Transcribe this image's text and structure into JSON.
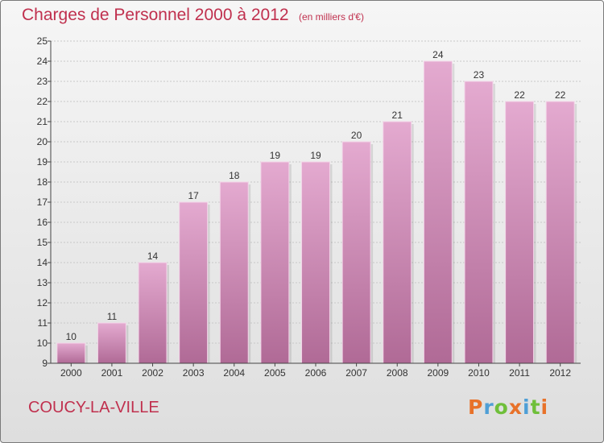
{
  "header": {
    "title": "Charges de Personnel 2000 à 2012",
    "subtitle": "(en milliers d'€)"
  },
  "footer": {
    "place": "COUCY-LA-VILLE",
    "brand": "Proxiti"
  },
  "colors": {
    "title": "#c0304e",
    "bar_top": "#e4aad0",
    "bar_bottom": "#b06a96",
    "grid": "#c8c8c8",
    "axis": "#444444"
  },
  "chart_data": {
    "type": "bar",
    "title": "Charges de Personnel 2000 à 2012",
    "subtitle": "(en milliers d'€)",
    "xlabel": "",
    "ylabel": "",
    "categories": [
      "2000",
      "2001",
      "2002",
      "2003",
      "2004",
      "2005",
      "2006",
      "2007",
      "2008",
      "2009",
      "2010",
      "2011",
      "2012"
    ],
    "values": [
      10,
      11,
      14,
      17,
      18,
      19,
      19,
      20,
      21,
      24,
      23,
      22,
      22
    ],
    "ylim": [
      9,
      25
    ],
    "yticks": [
      9,
      10,
      11,
      12,
      13,
      14,
      15,
      16,
      17,
      18,
      19,
      20,
      21,
      22,
      23,
      24,
      25
    ],
    "grid": true,
    "data_labels": true
  }
}
